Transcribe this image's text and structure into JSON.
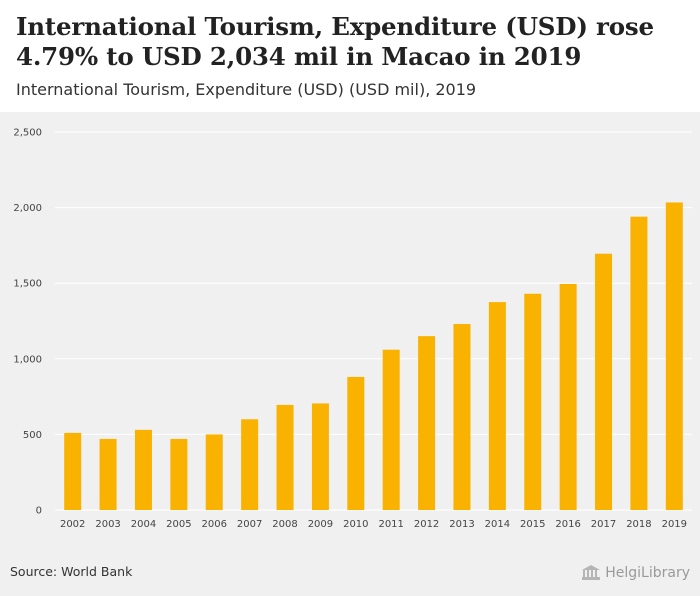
{
  "header": {
    "title": "International Tourism, Expenditure (USD) rose 4.79% to USD 2,034 mil in Macao in 2019",
    "subtitle": "International Tourism, Expenditure (USD) (USD mil), 2019"
  },
  "footer": {
    "source": "Source: World Bank",
    "brand": "HelgiLibrary"
  },
  "colors": {
    "bar": "#f9b200",
    "panel": "#f0f0f0",
    "grid": "#ffffff"
  },
  "chart_data": {
    "type": "bar",
    "title": "International Tourism, Expenditure (USD) (USD mil), 2019",
    "xlabel": "",
    "ylabel": "",
    "categories": [
      "2002",
      "2003",
      "2004",
      "2005",
      "2006",
      "2007",
      "2008",
      "2009",
      "2010",
      "2011",
      "2012",
      "2013",
      "2014",
      "2015",
      "2016",
      "2017",
      "2018",
      "2019"
    ],
    "values": [
      510,
      470,
      530,
      470,
      500,
      600,
      695,
      705,
      880,
      1060,
      1150,
      1230,
      1375,
      1430,
      1495,
      1695,
      1940,
      2034
    ],
    "ylim": [
      0,
      2500
    ],
    "yticks": [
      0,
      500,
      1000,
      1500,
      2000,
      2500
    ],
    "ytick_labels": [
      "0",
      "500",
      "1,000",
      "1,500",
      "2,000",
      "2,500"
    ],
    "grid": true
  }
}
